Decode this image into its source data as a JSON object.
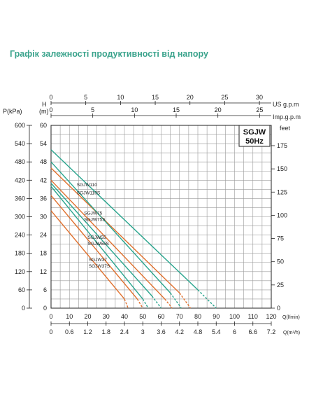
{
  "header": {
    "title": "Графік залежності продуктивності від напору"
  },
  "chart_data": {
    "type": "line",
    "box_label_line1": "SGJW",
    "box_label_line2": "50Hz",
    "axes": {
      "left_pressure": {
        "label": "P(kPa)",
        "ticks": [
          "0",
          "60",
          "120",
          "180",
          "240",
          "300",
          "360",
          "420",
          "480",
          "540",
          "600"
        ]
      },
      "left_head": {
        "label_line1": "H",
        "label_line2": "(m)",
        "ticks": [
          "0",
          "6",
          "12",
          "18",
          "24",
          "30",
          "36",
          "42",
          "48",
          "54",
          "60"
        ],
        "ylim": [
          0,
          60
        ]
      },
      "right_feet": {
        "label": "feet",
        "ticks": [
          "0",
          "25",
          "50",
          "75",
          "100",
          "125",
          "150",
          "175"
        ]
      },
      "top_us": {
        "label": "US g.p.m",
        "ticks": [
          "0",
          "5",
          "10",
          "15",
          "20",
          "25",
          "30"
        ]
      },
      "top_imp": {
        "label": "Imp.g.p.m",
        "ticks": [
          "0",
          "5",
          "10",
          "15",
          "20",
          "25"
        ]
      },
      "bottom_lmin": {
        "label": "Q(l/min)",
        "ticks": [
          "0",
          "10",
          "20",
          "30",
          "40",
          "50",
          "60",
          "70",
          "80",
          "90",
          "100",
          "110",
          "120"
        ],
        "xlim": [
          0,
          120
        ]
      },
      "bottom_m3h": {
        "label": "Q(m³/h)",
        "ticks": [
          "0",
          "0.6",
          "1.2",
          "1.8",
          "2.4",
          "3",
          "3.6",
          "4.2",
          "4.8",
          "5.4",
          "6",
          "6.6",
          "7.2"
        ]
      }
    },
    "series": [
      {
        "name": "SGJW110",
        "color": "#2aa58e",
        "x": [
          0,
          80,
          90
        ],
        "y": [
          52,
          6,
          0
        ]
      },
      {
        "name": "SGJW110S",
        "color": "#e0702d",
        "x": [
          0,
          70,
          76
        ],
        "y": [
          46,
          5,
          0
        ]
      },
      {
        "name": "SGJW75",
        "color": "#2aa58e",
        "x": [
          0,
          65,
          71
        ],
        "y": [
          48,
          5,
          0
        ]
      },
      {
        "name": "SGJW75S",
        "color": "#e0702d",
        "x": [
          0,
          62,
          66
        ],
        "y": [
          42,
          3,
          0
        ]
      },
      {
        "name": "SGJW55",
        "color": "#2aa58e",
        "x": [
          0,
          55,
          60
        ],
        "y": [
          41,
          4,
          0
        ]
      },
      {
        "name": "SGJW55S",
        "color": "#e0702d",
        "x": [
          0,
          47,
          50
        ],
        "y": [
          37,
          3,
          0
        ]
      },
      {
        "name": "SGJW37",
        "color": "#2aa58e",
        "x": [
          0,
          50,
          53
        ],
        "y": [
          40,
          3,
          0
        ]
      },
      {
        "name": "SGJW37S",
        "color": "#e0702d",
        "x": [
          0,
          40,
          42
        ],
        "y": [
          32,
          3,
          0
        ]
      }
    ],
    "series_labels": [
      {
        "text": "SGJW110",
        "x": 14,
        "y": 40
      },
      {
        "text": "SGJW110S",
        "x": 14,
        "y": 37.3
      },
      {
        "text": "SGJW75",
        "x": 18,
        "y": 30.7
      },
      {
        "text": "SGJW75S",
        "x": 18,
        "y": 28.6
      },
      {
        "text": "SGJW55",
        "x": 20,
        "y": 22.8
      },
      {
        "text": "SGJW55S",
        "x": 20,
        "y": 20.7
      },
      {
        "text": "SGJW37",
        "x": 20.5,
        "y": 15.4
      },
      {
        "text": "SGJW37S",
        "x": 20.5,
        "y": 13.3
      }
    ],
    "grid": true
  }
}
